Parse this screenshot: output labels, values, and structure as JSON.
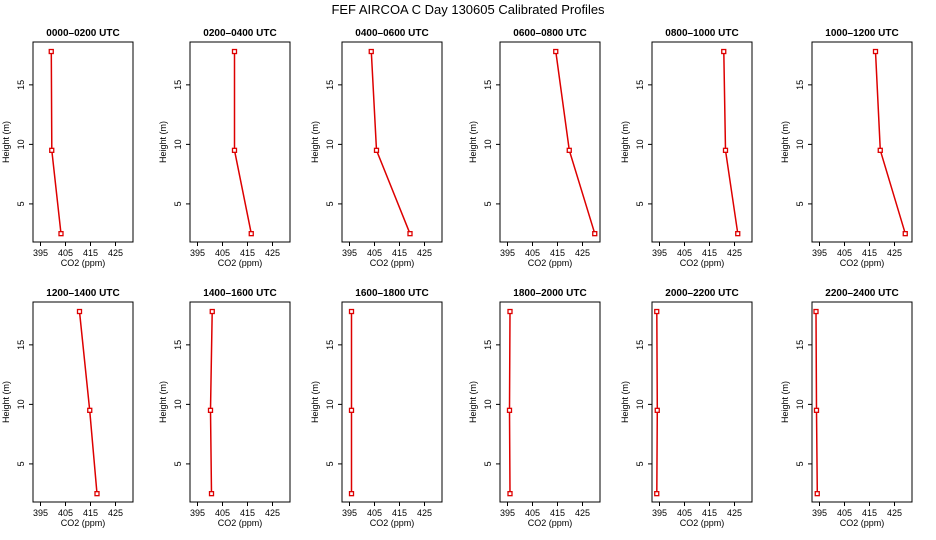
{
  "figure": {
    "title": "FEF AIRCOA C  Day 130605  Calibrated Profiles"
  },
  "chart_data": {
    "type": "line",
    "xlabel": "CO2 (ppm)",
    "ylabel": "Height (m)",
    "xlim": [
      392,
      432
    ],
    "ylim": [
      1.8,
      18.6
    ],
    "xticks": [
      395,
      405,
      415,
      425
    ],
    "yticks": [
      5,
      10,
      15
    ],
    "line_color": "#dd0000",
    "marker_color": "#dd0000",
    "panels": [
      {
        "title": "0000–0200 UTC",
        "points": [
          [
            403.2,
            2.5
          ],
          [
            399.5,
            9.5
          ],
          [
            399.3,
            17.8
          ]
        ]
      },
      {
        "title": "0200–0400 UTC",
        "points": [
          [
            416.5,
            2.5
          ],
          [
            409.8,
            9.5
          ],
          [
            409.8,
            17.8
          ]
        ]
      },
      {
        "title": "0400–0600 UTC",
        "points": [
          [
            419.2,
            2.5
          ],
          [
            405.8,
            9.5
          ],
          [
            403.7,
            17.8
          ]
        ]
      },
      {
        "title": "0600–0800 UTC",
        "points": [
          [
            429.9,
            2.5
          ],
          [
            419.7,
            9.5
          ],
          [
            414.3,
            17.8
          ]
        ]
      },
      {
        "title": "0800–1000 UTC",
        "points": [
          [
            426.3,
            2.5
          ],
          [
            421.4,
            9.5
          ],
          [
            420.7,
            17.8
          ]
        ]
      },
      {
        "title": "1000–1200 UTC",
        "points": [
          [
            429.3,
            2.5
          ],
          [
            419.3,
            9.5
          ],
          [
            417.4,
            17.8
          ]
        ]
      },
      {
        "title": "1200–1400 UTC",
        "points": [
          [
            417.6,
            2.5
          ],
          [
            414.7,
            9.5
          ],
          [
            410.6,
            17.8
          ]
        ]
      },
      {
        "title": "1400–1600 UTC",
        "points": [
          [
            400.6,
            2.5
          ],
          [
            400.2,
            9.5
          ],
          [
            400.9,
            17.8
          ]
        ]
      },
      {
        "title": "1600–1800 UTC",
        "points": [
          [
            395.8,
            2.5
          ],
          [
            395.8,
            9.5
          ],
          [
            395.8,
            17.8
          ]
        ]
      },
      {
        "title": "1800–2000 UTC",
        "points": [
          [
            396.0,
            2.5
          ],
          [
            395.8,
            9.5
          ],
          [
            396.0,
            17.8
          ]
        ]
      },
      {
        "title": "2000–2200 UTC",
        "points": [
          [
            393.9,
            2.5
          ],
          [
            394.1,
            9.5
          ],
          [
            393.9,
            17.8
          ]
        ]
      },
      {
        "title": "2200–2400 UTC",
        "points": [
          [
            394.1,
            2.5
          ],
          [
            393.8,
            9.5
          ],
          [
            393.6,
            17.8
          ]
        ]
      }
    ]
  }
}
